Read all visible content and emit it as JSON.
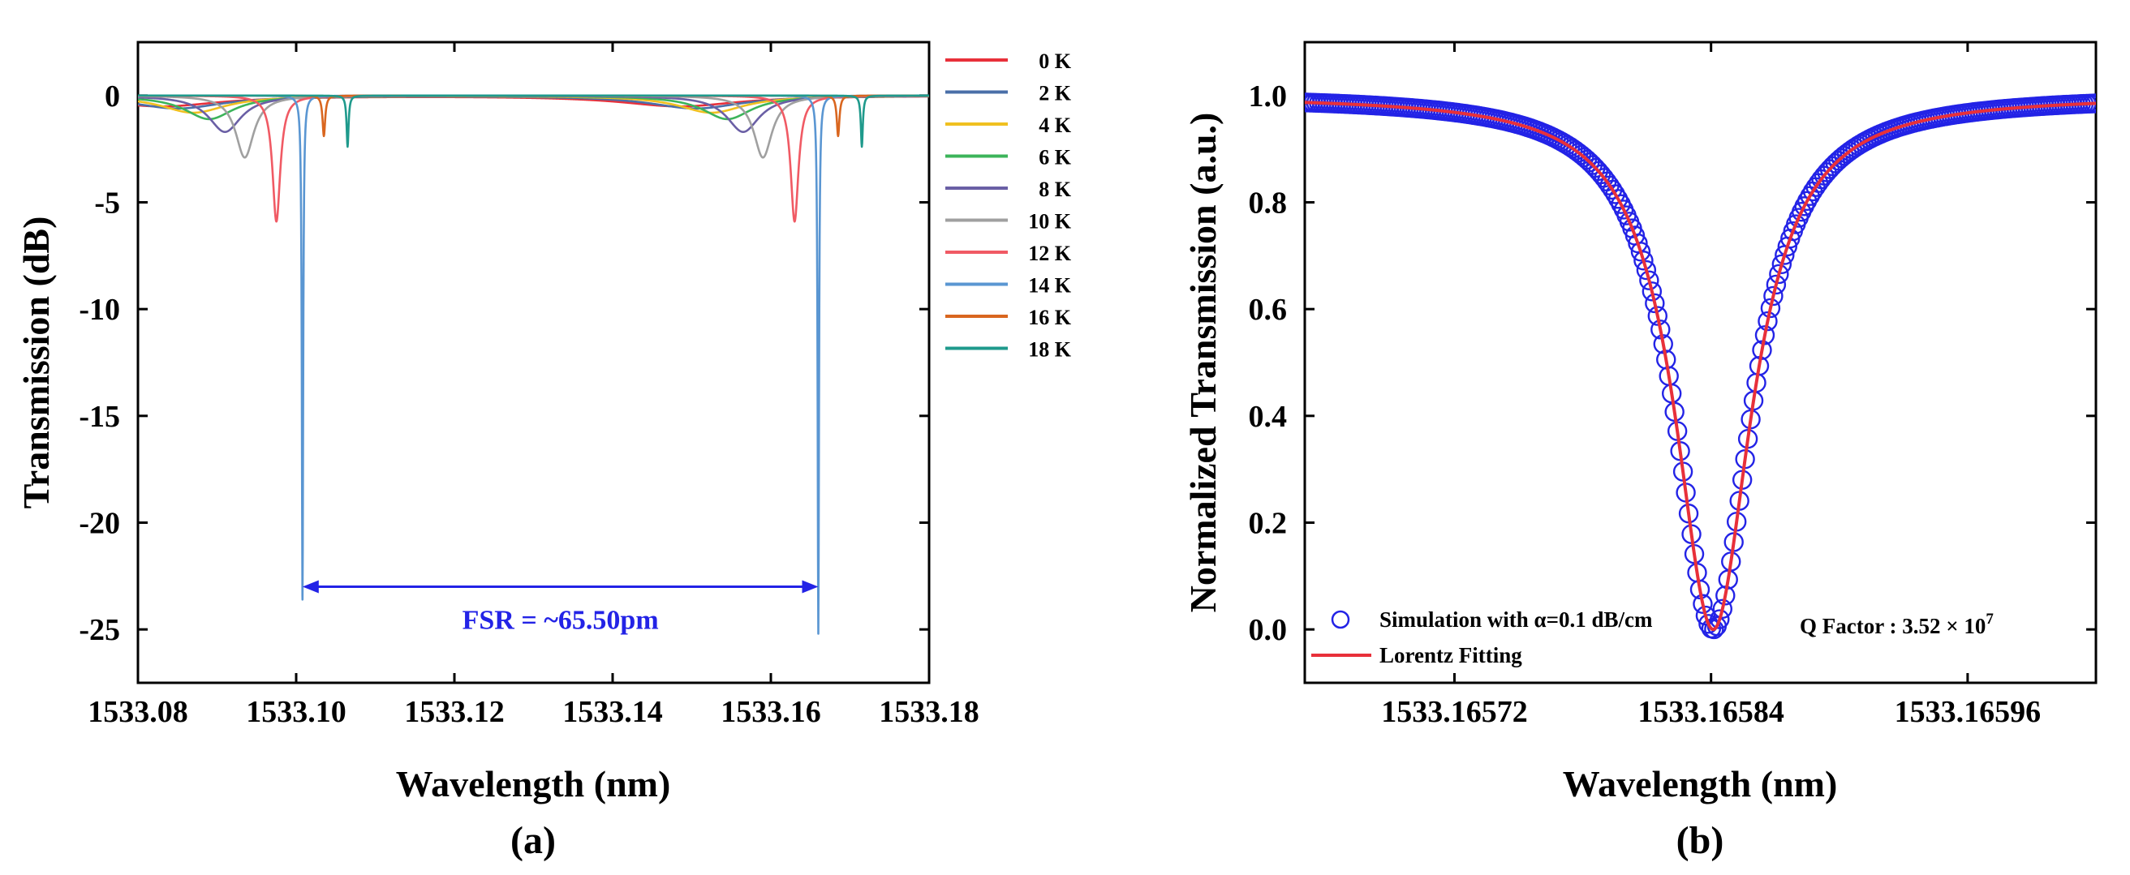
{
  "chart_data": [
    {
      "type": "line",
      "panel_label": "(a)",
      "xlabel": "Wavelength (nm)",
      "ylabel": "Transmission (dB)",
      "xlim": [
        1533.08,
        1533.18
      ],
      "ylim": [
        -27.5,
        2.5
      ],
      "xticks": [
        1533.08,
        1533.1,
        1533.12,
        1533.14,
        1533.16,
        1533.18
      ],
      "xtick_labels": [
        "1533.08",
        "1533.10",
        "1533.12",
        "1533.14",
        "1533.16",
        "1533.18"
      ],
      "yticks": [
        0,
        -5,
        -10,
        -15,
        -20,
        -25
      ],
      "ytick_labels": [
        "0",
        "-5",
        "-10",
        "-15",
        "-20",
        "-25"
      ],
      "legend_position": "outside-right",
      "series": [
        {
          "name": "0 K",
          "color": "#e8303a",
          "fwhm": 0.018,
          "dips": [
            {
              "x": 1533.083,
              "depth": 0.5
            },
            {
              "x": 1533.1485,
              "depth": 0.5
            }
          ]
        },
        {
          "name": "2 K",
          "color": "#4a6fa8",
          "fwhm": 0.014,
          "dips": [
            {
              "x": 1533.085,
              "depth": 0.6
            },
            {
              "x": 1533.1505,
              "depth": 0.6
            }
          ]
        },
        {
          "name": "4 K",
          "color": "#f0c020",
          "fwhm": 0.01,
          "dips": [
            {
              "x": 1533.087,
              "depth": 0.8
            },
            {
              "x": 1533.1525,
              "depth": 0.8
            }
          ]
        },
        {
          "name": "6 K",
          "color": "#3cb45a",
          "fwhm": 0.0075,
          "dips": [
            {
              "x": 1533.089,
              "depth": 1.1
            },
            {
              "x": 1533.1545,
              "depth": 1.1
            }
          ]
        },
        {
          "name": "8 K",
          "color": "#6a5fa5",
          "fwhm": 0.005,
          "dips": [
            {
              "x": 1533.091,
              "depth": 1.7
            },
            {
              "x": 1533.1565,
              "depth": 1.7
            }
          ]
        },
        {
          "name": "10 K",
          "color": "#a0a0a0",
          "fwhm": 0.0028,
          "dips": [
            {
              "x": 1533.0935,
              "depth": 2.9
            },
            {
              "x": 1533.159,
              "depth": 2.9
            }
          ]
        },
        {
          "name": "12 K",
          "color": "#f05a64",
          "fwhm": 0.0012,
          "dips": [
            {
              "x": 1533.0975,
              "depth": 5.9
            },
            {
              "x": 1533.163,
              "depth": 5.9
            }
          ]
        },
        {
          "name": "14 K",
          "color": "#5a96d2",
          "fwhm": 0.0002,
          "dips": [
            {
              "x": 1533.1008,
              "depth": 23.6
            },
            {
              "x": 1533.166,
              "depth": 25.2
            }
          ]
        },
        {
          "name": "16 K",
          "color": "#d9661f",
          "fwhm": 0.0004,
          "dips": [
            {
              "x": 1533.1035,
              "depth": 1.9
            },
            {
              "x": 1533.1685,
              "depth": 1.9
            }
          ]
        },
        {
          "name": "18 K",
          "color": "#1f9a8c",
          "fwhm": 0.0003,
          "dips": [
            {
              "x": 1533.1065,
              "depth": 2.4
            },
            {
              "x": 1533.1715,
              "depth": 2.4
            }
          ]
        }
      ],
      "annotation": {
        "text": "FSR = ~65.50pm",
        "x_start": 1533.1008,
        "x_end": 1533.166,
        "y": -23.0,
        "color": "#2323e6"
      }
    },
    {
      "type": "scatter",
      "panel_label": "(b)",
      "xlabel": "Wavelength (nm)",
      "ylabel": "Normalized Transmission (a.u.)",
      "xlim": [
        1533.16565,
        1533.16602
      ],
      "ylim": [
        -0.1,
        1.1
      ],
      "xticks": [
        1533.16572,
        1533.16584,
        1533.16596
      ],
      "xtick_labels": [
        "1533.16572",
        "1533.16584",
        "1533.16596"
      ],
      "yticks": [
        0.0,
        0.2,
        0.4,
        0.6,
        0.8,
        1.0
      ],
      "ytick_labels": [
        "0.0",
        "0.2",
        "0.4",
        "0.6",
        "0.8",
        "1.0"
      ],
      "series": [
        {
          "name": "Simulation with α=0.1 dB/cm",
          "marker": "open-circle",
          "color": "#2323e6",
          "x_start": 1533.16565,
          "x_step": 1.32e-06,
          "count": 281,
          "center": 1533.165841,
          "fwhm": 4.36e-05
        },
        {
          "name": "Lorentz Fitting",
          "marker": "line",
          "color": "#e8303a",
          "center": 1533.165841,
          "fwhm": 4.36e-05
        }
      ],
      "q_factor_text": "Q Factor : 3.52 × 10",
      "q_factor_exp": "7",
      "legend_position": "bottom-left"
    }
  ]
}
